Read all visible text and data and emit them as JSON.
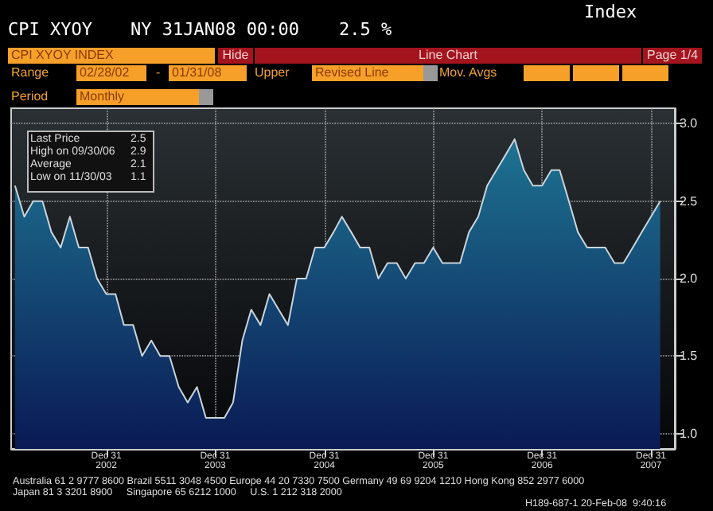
{
  "chart_data": {
    "type": "area",
    "title": "CPI XYOY",
    "subtitle": "NY 31JAN08 00:00",
    "annotations": [
      "2.5 %",
      "Index",
      "CPI XYOY INDEX",
      "Hide",
      "Line Chart",
      "Page 1/4",
      "Range",
      "02/28/02",
      "-",
      "01/31/08",
      "Upper",
      "Revised Line",
      "Mov. Avgs",
      "Period",
      "Monthly",
      "Last Price",
      "2.5",
      "High on 09/30/06",
      "2.9",
      "Average",
      "2.1",
      "Low on 11/30/03",
      "1.1",
      "Australia 61 2 9777 8600 Brazil 5511 3048 4500 Europe 44 20 7330 7500 Germany 49 69 9204 1210 Hong Kong 852 2977 6000",
      "Japan 81 3 3201 8900     Singapore 65 6212 1000     U.S. 1 212 318 2000",
      "H189-687-1 20-Feb-08  9:40:16"
    ],
    "x": [
      "2002-02-28",
      "2002-03-31",
      "2002-04-30",
      "2002-05-31",
      "2002-06-30",
      "2002-07-31",
      "2002-08-31",
      "2002-09-30",
      "2002-10-31",
      "2002-11-30",
      "2002-12-31",
      "2003-01-31",
      "2003-02-28",
      "2003-03-31",
      "2003-04-30",
      "2003-05-31",
      "2003-06-30",
      "2003-07-31",
      "2003-08-31",
      "2003-09-30",
      "2003-10-31",
      "2003-11-30",
      "2003-12-31",
      "2004-01-31",
      "2004-02-29",
      "2004-03-31",
      "2004-04-30",
      "2004-05-31",
      "2004-06-30",
      "2004-07-31",
      "2004-08-31",
      "2004-09-30",
      "2004-10-31",
      "2004-11-30",
      "2004-12-31",
      "2005-01-31",
      "2005-02-28",
      "2005-03-31",
      "2005-04-30",
      "2005-05-31",
      "2005-06-30",
      "2005-07-31",
      "2005-08-31",
      "2005-09-30",
      "2005-10-31",
      "2005-11-30",
      "2005-12-31",
      "2006-01-31",
      "2006-02-28",
      "2006-03-31",
      "2006-04-30",
      "2006-05-31",
      "2006-06-30",
      "2006-07-31",
      "2006-08-31",
      "2006-09-30",
      "2006-10-31",
      "2006-11-30",
      "2006-12-31",
      "2007-01-31",
      "2007-02-28",
      "2007-03-31",
      "2007-04-30",
      "2007-05-31",
      "2007-06-30",
      "2007-07-31",
      "2007-08-31",
      "2007-09-30",
      "2007-10-31",
      "2007-11-30",
      "2007-12-31",
      "2008-01-31"
    ],
    "series": [
      {
        "color": "#1e7391",
        "values": [
          2.6,
          2.4,
          2.5,
          2.5,
          2.3,
          2.2,
          2.4,
          2.2,
          2.2,
          2.0,
          1.9,
          1.9,
          1.7,
          1.7,
          1.5,
          1.6,
          1.5,
          1.5,
          1.3,
          1.2,
          1.3,
          1.1,
          1.1,
          1.1,
          1.2,
          1.6,
          1.8,
          1.7,
          1.9,
          1.8,
          1.7,
          2.0,
          2.0,
          2.2,
          2.2,
          2.3,
          2.4,
          2.3,
          2.2,
          2.2,
          2.0,
          2.1,
          2.1,
          2.0,
          2.1,
          2.1,
          2.2,
          2.1,
          2.1,
          2.1,
          2.3,
          2.4,
          2.6,
          2.7,
          2.8,
          2.9,
          2.7,
          2.6,
          2.6,
          2.7,
          2.7,
          2.5,
          2.3,
          2.2,
          2.2,
          2.2,
          2.1,
          2.1,
          2.2,
          2.3,
          2.4,
          2.5
        ]
      }
    ],
    "xlim": [
      "2002-02-15",
      "2008-03-20"
    ],
    "xticks": [
      {
        "value": "2002-12-31",
        "label": "Dec 31\n2002"
      },
      {
        "value": "2003-12-31",
        "label": "Dec 31\n2003"
      },
      {
        "value": "2004-12-31",
        "label": "Dec 31\n2004"
      },
      {
        "value": "2005-12-31",
        "label": "Dec 31\n2005"
      },
      {
        "value": "2006-12-31",
        "label": "Dec 31\n2006"
      },
      {
        "value": "2007-12-31",
        "label": "Dec 31\n2007"
      }
    ],
    "ylim": [
      0.9,
      3.1
    ],
    "yticks": [
      {
        "value": 1,
        "label": "1.0"
      },
      {
        "value": 1.5,
        "label": "1.5"
      },
      {
        "value": 2,
        "label": "2.0"
      },
      {
        "value": 2.5,
        "label": "2.5"
      },
      {
        "value": 3,
        "label": "3.0"
      }
    ],
    "grid": true,
    "marker": "none"
  }
}
